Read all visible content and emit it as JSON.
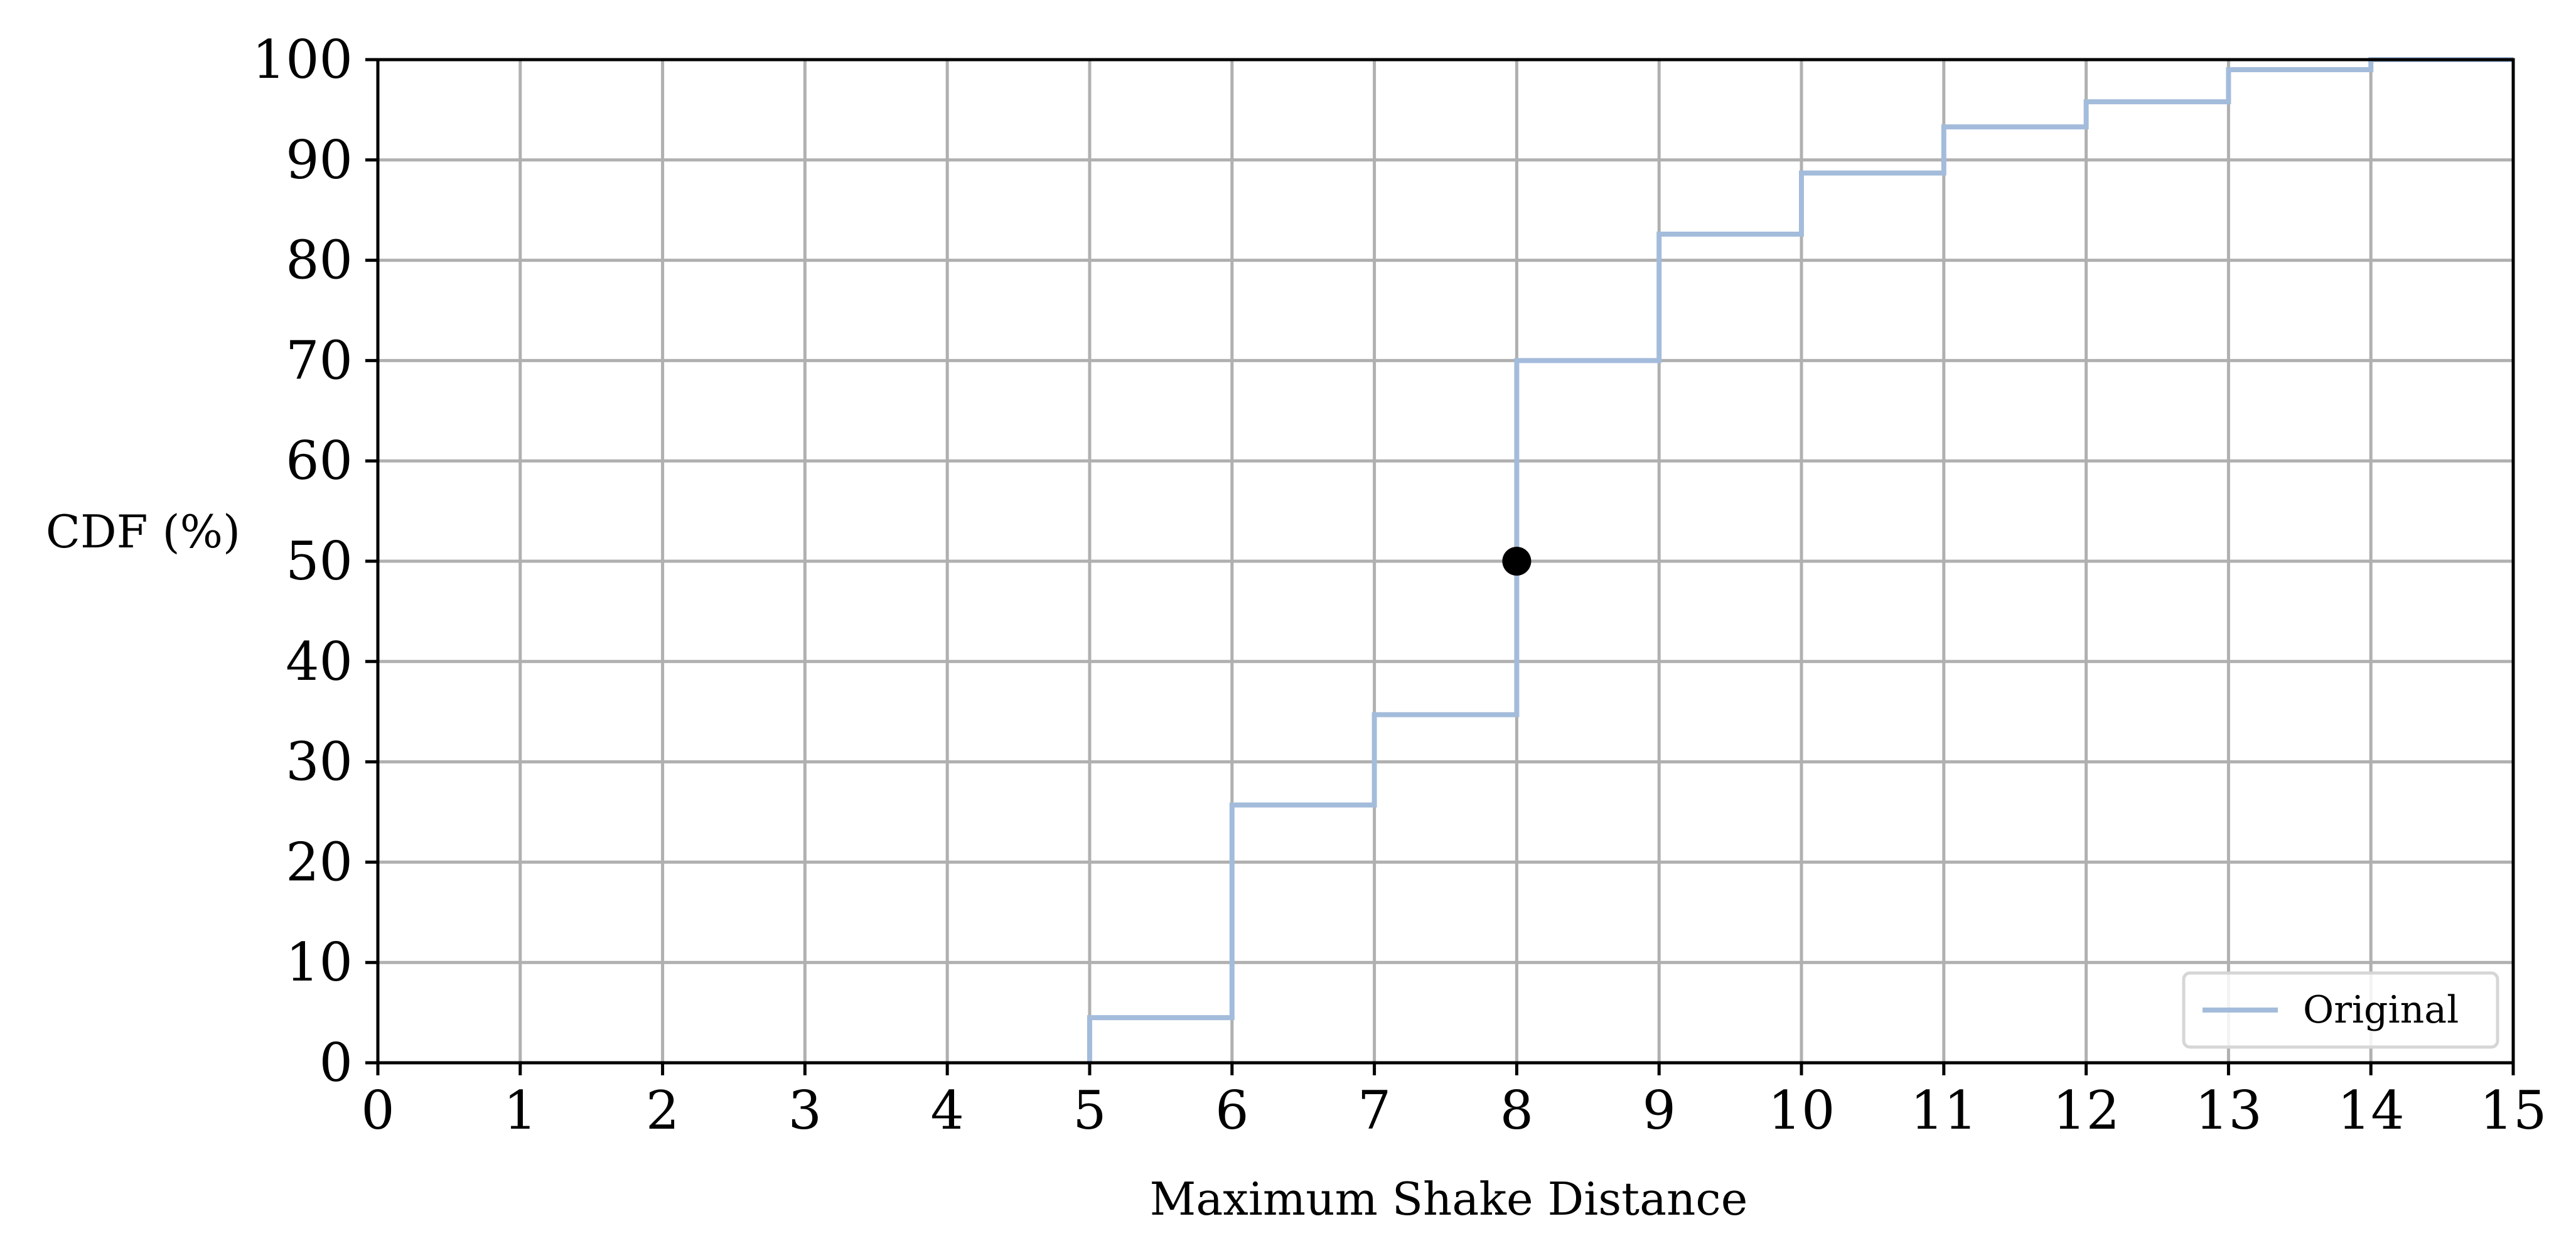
{
  "chart_data": {
    "type": "line",
    "title": "",
    "xlabel": "Maximum Shake Distance",
    "ylabel": "CDF (%)",
    "xlim": [
      0,
      15
    ],
    "ylim": [
      0,
      100
    ],
    "x_ticks": [
      0,
      1,
      2,
      3,
      4,
      5,
      6,
      7,
      8,
      9,
      10,
      11,
      12,
      13,
      14,
      15
    ],
    "y_ticks": [
      0,
      10,
      20,
      30,
      40,
      50,
      60,
      70,
      80,
      90,
      100
    ],
    "grid": true,
    "legend_position": "lower-right",
    "step": "post",
    "series": [
      {
        "name": "Original",
        "color": "#a4bcdb",
        "x": [
          5,
          6,
          7,
          8,
          9,
          10,
          11,
          12,
          13,
          14,
          15
        ],
        "y": [
          4.5,
          25.7,
          34.7,
          70.0,
          82.6,
          88.7,
          93.3,
          95.8,
          99.0,
          100,
          100
        ]
      }
    ],
    "marker": {
      "x": 8,
      "y": 50,
      "color": "#000000"
    }
  }
}
